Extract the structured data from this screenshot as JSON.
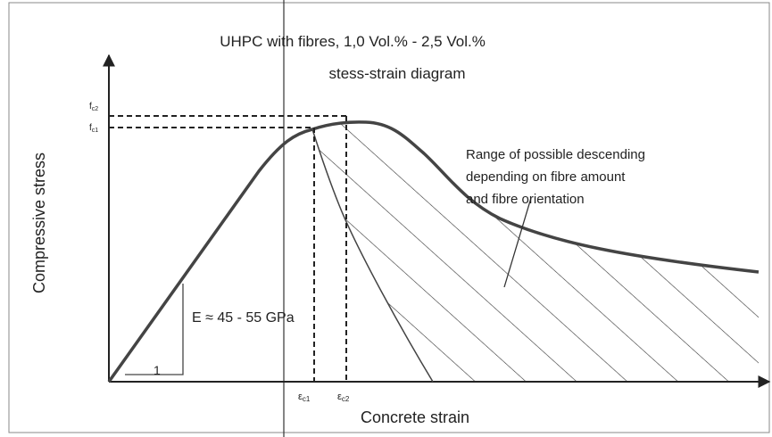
{
  "title": [
    "UHPC with fibres, 1,0 Vol.% - 2,5 Vol.%",
    "stess-strain diagram"
  ],
  "y_axis_label": "Compressive stress",
  "x_axis_label": "Concrete strain",
  "stress_labels": [
    {
      "base": "f",
      "sub": "c2"
    },
    {
      "base": "f",
      "sub": "c1"
    }
  ],
  "strain_labels": [
    {
      "base": "ε",
      "sub": "c1"
    },
    {
      "base": "ε",
      "sub": "c2"
    }
  ],
  "modulus_label": "E ≈ 45 - 55 GPa",
  "slope_unit": "1",
  "annotation": [
    "Range of possible descending",
    "depending on fibre amount",
    "and fibre orientation"
  ]
}
